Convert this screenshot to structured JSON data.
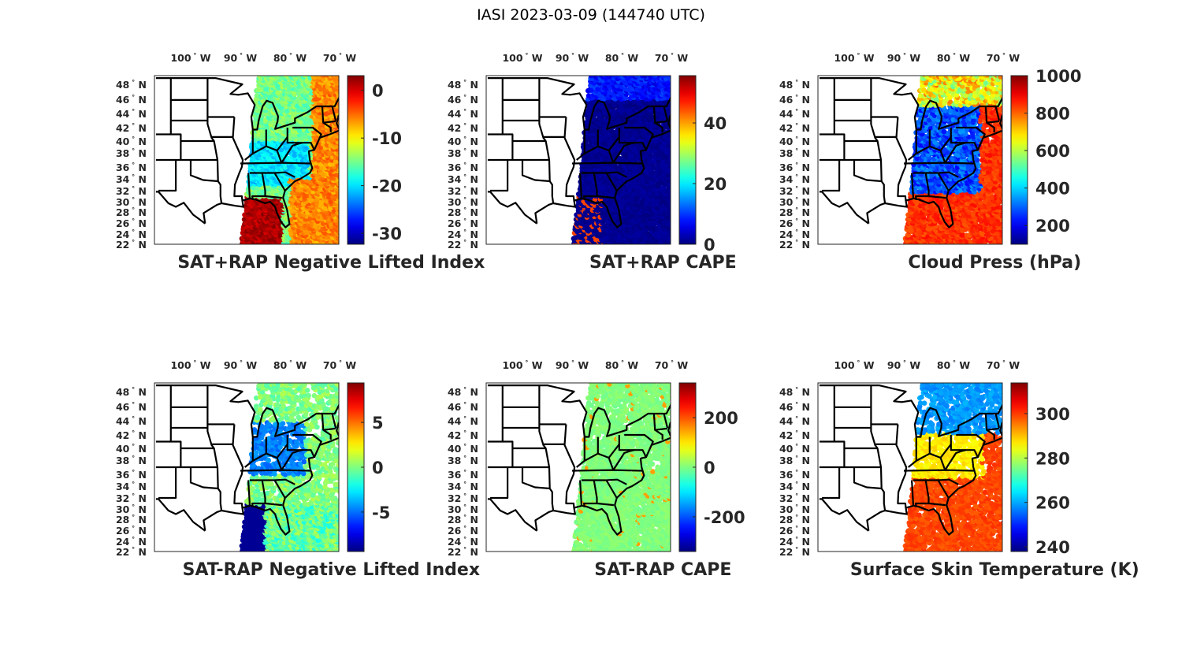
{
  "figure_title": "IASI 2023-03-09 (144740 UTC)",
  "lon_ticks": [
    100,
    90,
    80,
    70
  ],
  "lon_suffix": "W",
  "lat_ticks": [
    48,
    46,
    44,
    42,
    40,
    38,
    36,
    34,
    32,
    30,
    28,
    26,
    24,
    22
  ],
  "lat_suffix": "N",
  "degree_symbol": "°",
  "chart_data": [
    {
      "type": "scatter",
      "title": "SAT+RAP Negative Lifted Index",
      "colorbar": {
        "range": [
          -32.3,
          3.1
        ],
        "ticks": [
          0,
          -10,
          -20,
          -30
        ]
      }
    },
    {
      "type": "scatter",
      "title": "SAT+RAP CAPE",
      "colorbar": {
        "range": [
          0,
          55.6
        ],
        "ticks": [
          40,
          20,
          0
        ]
      }
    },
    {
      "type": "scatter",
      "title": "Cloud Press (hPa)",
      "colorbar": {
        "range": [
          100,
          1000
        ],
        "ticks": [
          1000,
          800,
          600,
          400,
          200
        ]
      }
    },
    {
      "type": "scatter",
      "title": "SAT-RAP Negative Lifted Index",
      "colorbar": {
        "range": [
          -9.4,
          9.4
        ],
        "ticks": [
          5,
          0,
          -5
        ]
      }
    },
    {
      "type": "scatter",
      "title": "SAT-RAP CAPE",
      "colorbar": {
        "range": [
          -340,
          340
        ],
        "ticks": [
          200,
          0,
          -200
        ]
      }
    },
    {
      "type": "scatter",
      "title": "Surface Skin Temperature (K)",
      "colorbar": {
        "range": [
          237.9,
          313.8
        ],
        "ticks": [
          300,
          280,
          260,
          240
        ]
      }
    }
  ]
}
